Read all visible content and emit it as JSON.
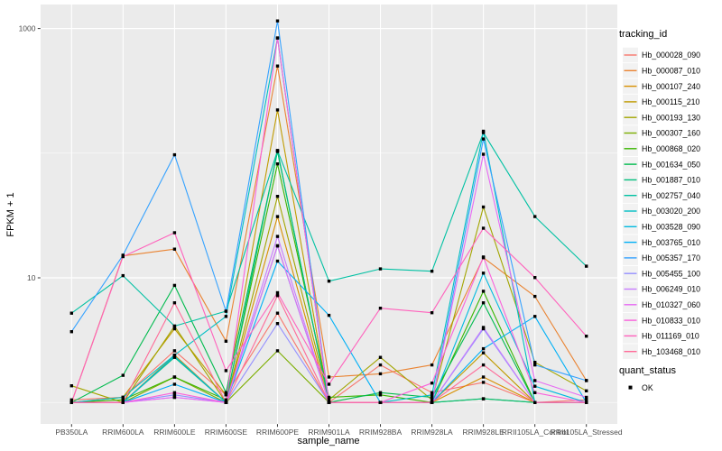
{
  "chart_data": {
    "type": "line",
    "title": "",
    "xlabel": "sample_name",
    "ylabel": "FPKM + 1",
    "y_scale": "log10",
    "y_tick_labels": [
      "1000",
      "10"
    ],
    "y_tick_values": [
      1000,
      10
    ],
    "y_minor_values": [
      100,
      1
    ],
    "ylim_log": [
      0.67,
      1330
    ],
    "grid": "on",
    "panel_bg": "#EBEBEB",
    "grid_color": "#FFFFFF",
    "tick_label_color": "#4D4D4D",
    "legend_position": "right",
    "legend_title": "tracking_id",
    "legend_key_bg": "#F2F2F2",
    "quant_legend": {
      "title": "quant_status",
      "items": [
        "OK"
      ],
      "marker_color": "#000000"
    },
    "categories": [
      "PB350LA",
      "RRIM600LA",
      "RRIM600LE",
      "RRIM600SE",
      "RRIM600PE",
      "RRIM901LA",
      "RRIM928BA",
      "RRIM928LA",
      "RRIM928LE",
      "RRII105LA_Control",
      "RRII105LA_Stressed"
    ],
    "series": [
      {
        "name": "Hb_000028_090",
        "color": "#F8766D",
        "values": [
          1.05,
          1.1,
          2.6,
          1.15,
          5.2,
          1.0,
          2.0,
          1.2,
          1.45,
          1.0,
          1.05
        ]
      },
      {
        "name": "Hb_000087_010",
        "color": "#EA8331",
        "values": [
          1.0,
          15.0,
          17.0,
          3.1,
          500,
          1.6,
          1.7,
          2.0,
          14.5,
          7.1,
          1.5
        ]
      },
      {
        "name": "Hb_000107_240",
        "color": "#D89000",
        "values": [
          1.0,
          1.0,
          2.4,
          1.0,
          31,
          1.0,
          1.0,
          1.0,
          1.6,
          1.0,
          1.0
        ]
      },
      {
        "name": "Hb_000115_210",
        "color": "#C09B00",
        "values": [
          1.0,
          1.1,
          3.9,
          1.15,
          222,
          1.0,
          1.0,
          1.0,
          2.5,
          1.0,
          1.0
        ]
      },
      {
        "name": "Hb_000193_130",
        "color": "#A3A500",
        "values": [
          1.36,
          1.0,
          4.1,
          1.0,
          45,
          1.05,
          2.3,
          1.05,
          37,
          2.1,
          1.24
        ]
      },
      {
        "name": "Hb_000307_160",
        "color": "#7CAE00",
        "values": [
          1.0,
          1.0,
          1.6,
          1.0,
          2.6,
          1.0,
          1.0,
          1.0,
          1.07,
          1.0,
          1.0
        ]
      },
      {
        "name": "Hb_000868_020",
        "color": "#39B600",
        "values": [
          1.0,
          1.05,
          1.6,
          1.05,
          82,
          1.1,
          1.15,
          1.0,
          7.8,
          1.0,
          1.0
        ]
      },
      {
        "name": "Hb_001634_050",
        "color": "#00BB4E",
        "values": [
          1.0,
          1.65,
          8.7,
          1.2,
          103,
          1.0,
          1.2,
          1.1,
          6.3,
          1.0,
          1.0
        ]
      },
      {
        "name": "Hb_001887_010",
        "color": "#00BF7D",
        "values": [
          1.0,
          1.0,
          2.3,
          1.0,
          105,
          1.0,
          1.0,
          1.0,
          1.07,
          1.0,
          1.0
        ]
      },
      {
        "name": "Hb_002757_040",
        "color": "#00C1A3",
        "values": [
          5.2,
          10.4,
          4.1,
          5.4,
          105,
          9.4,
          11.8,
          11.3,
          146,
          31,
          12.4
        ]
      },
      {
        "name": "Hb_003020_200",
        "color": "#00BFC4",
        "values": [
          1.0,
          1.1,
          2.4,
          4.9,
          840,
          1.0,
          1.0,
          1.15,
          150,
          1.0,
          1.0
        ]
      },
      {
        "name": "Hb_003528_090",
        "color": "#00BAE0",
        "values": [
          1.0,
          1.0,
          2.35,
          1.0,
          18.0,
          1.0,
          1.0,
          1.0,
          10.9,
          1.35,
          1.0
        ]
      },
      {
        "name": "Hb_003765_010",
        "color": "#00B0F6",
        "values": [
          1.0,
          1.0,
          1.4,
          1.0,
          13.6,
          5.0,
          1.0,
          1.0,
          2.7,
          4.9,
          1.0
        ]
      },
      {
        "name": "Hb_005357_170",
        "color": "#35A2FF",
        "values": [
          3.7,
          15.2,
          97,
          5.4,
          1150,
          1.0,
          1.0,
          1.0,
          130,
          2.0,
          1.5
        ]
      },
      {
        "name": "Hb_005455_100",
        "color": "#9590FF",
        "values": [
          1.0,
          1.0,
          1.15,
          1.0,
          4.3,
          1.0,
          1.0,
          1.0,
          3.9,
          1.0,
          1.0
        ]
      },
      {
        "name": "Hb_006249_010",
        "color": "#C77CFF",
        "values": [
          1.0,
          1.0,
          1.1,
          1.0,
          21.5,
          1.0,
          1.0,
          1.0,
          4.0,
          1.0,
          1.0
        ]
      },
      {
        "name": "Hb_010327_060",
        "color": "#E76BF3",
        "values": [
          1.0,
          1.0,
          1.1,
          1.0,
          18.1,
          1.0,
          1.0,
          1.0,
          98,
          1.5,
          1.1
        ]
      },
      {
        "name": "Hb_010833_010",
        "color": "#FA62DB",
        "values": [
          1.0,
          1.0,
          1.2,
          1.0,
          840,
          1.0,
          1.0,
          1.43,
          14.7,
          1.2,
          1.0
        ]
      },
      {
        "name": "Hb_011169_010",
        "color": "#FF62BC",
        "values": [
          1.0,
          14.8,
          23,
          1.8,
          7.6,
          1.4,
          5.7,
          5.25,
          25,
          10.05,
          3.4
        ]
      },
      {
        "name": "Hb_103468_010",
        "color": "#FF6A98",
        "values": [
          1.0,
          1.0,
          6.3,
          1.0,
          7.2,
          1.0,
          1.0,
          1.0,
          2.0,
          1.0,
          1.0
        ]
      }
    ]
  }
}
